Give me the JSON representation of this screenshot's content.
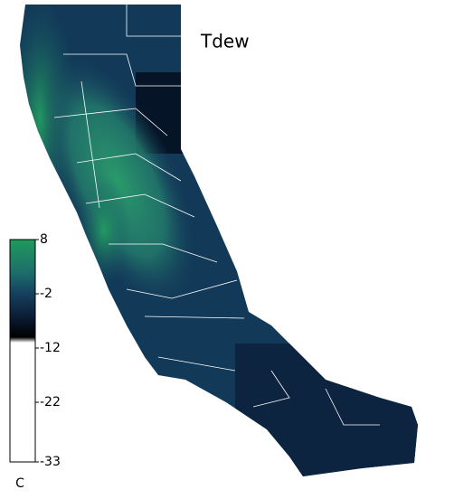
{
  "chart_data": {
    "type": "map",
    "title": "Tdew",
    "colorbar_label": "C",
    "clim": [
      -33,
      8
    ],
    "colorbar_ticks": [
      8,
      -2,
      -12,
      -22,
      -33
    ],
    "colormap": [
      {
        "value": 8,
        "color": "#1f9a5c"
      },
      {
        "value": 2,
        "color": "#1d6e6a"
      },
      {
        "value": -2,
        "color": "#16405e"
      },
      {
        "value": -6,
        "color": "#0c1e38"
      },
      {
        "value": -10,
        "color": "#000000"
      },
      {
        "value": -11,
        "color": "#ffffff"
      },
      {
        "value": -33,
        "color": "#ffffff"
      }
    ]
  }
}
